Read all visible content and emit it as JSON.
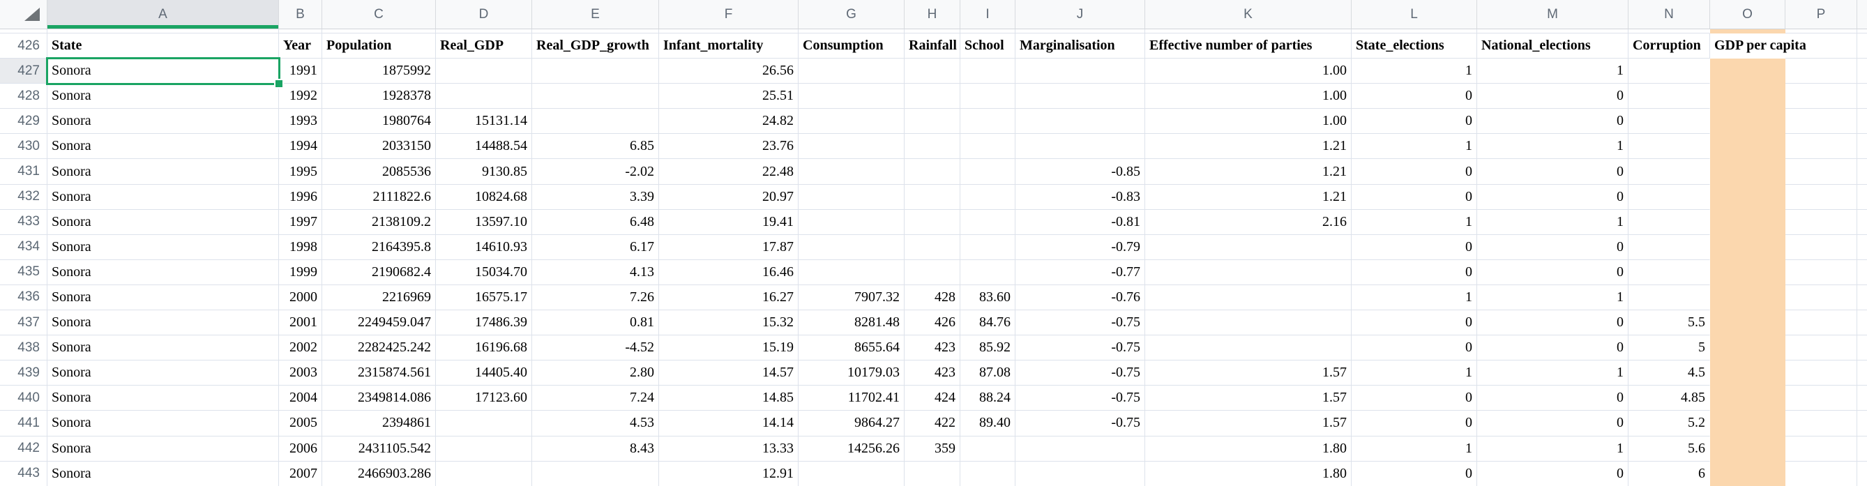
{
  "grid": {
    "column_letters": [
      "A",
      "B",
      "C",
      "D",
      "E",
      "F",
      "G",
      "H",
      "I",
      "J",
      "K",
      "L",
      "M",
      "N",
      "O",
      "P"
    ],
    "selection": {
      "cell_ref": "A427",
      "column": "A",
      "row": "427"
    },
    "header_row": {
      "n": "426",
      "cells": [
        "State",
        "Year",
        "Population",
        "Real_GDP",
        "Real_GDP_growth",
        "Infant_mortality",
        "Consumption",
        "Rainfall",
        "School",
        "Marginalisation",
        "Effective number of parties",
        "State_elections",
        "National_elections",
        "Corruption",
        "GDP per capita",
        ""
      ]
    },
    "data_rows": [
      {
        "n": "427",
        "cells": [
          "Sonora",
          "1991",
          "1875992",
          "",
          "",
          "26.56",
          "",
          "",
          "",
          "",
          "1.00",
          "1",
          "1",
          "",
          "",
          ""
        ]
      },
      {
        "n": "428",
        "cells": [
          "Sonora",
          "1992",
          "1928378",
          "",
          "",
          "25.51",
          "",
          "",
          "",
          "",
          "1.00",
          "0",
          "0",
          "",
          "",
          ""
        ]
      },
      {
        "n": "429",
        "cells": [
          "Sonora",
          "1993",
          "1980764",
          "15131.14",
          "",
          "24.82",
          "",
          "",
          "",
          "",
          "1.00",
          "0",
          "0",
          "",
          "",
          ""
        ]
      },
      {
        "n": "430",
        "cells": [
          "Sonora",
          "1994",
          "2033150",
          "14488.54",
          "6.85",
          "23.76",
          "",
          "",
          "",
          "",
          "1.21",
          "1",
          "1",
          "",
          "",
          ""
        ]
      },
      {
        "n": "431",
        "cells": [
          "Sonora",
          "1995",
          "2085536",
          "9130.85",
          "-2.02",
          "22.48",
          "",
          "",
          "",
          "-0.85",
          "1.21",
          "0",
          "0",
          "",
          "",
          ""
        ]
      },
      {
        "n": "432",
        "cells": [
          "Sonora",
          "1996",
          "2111822.6",
          "10824.68",
          "3.39",
          "20.97",
          "",
          "",
          "",
          "-0.83",
          "1.21",
          "0",
          "0",
          "",
          "",
          ""
        ]
      },
      {
        "n": "433",
        "cells": [
          "Sonora",
          "1997",
          "2138109.2",
          "13597.10",
          "6.48",
          "19.41",
          "",
          "",
          "",
          "-0.81",
          "2.16",
          "1",
          "1",
          "",
          "",
          ""
        ]
      },
      {
        "n": "434",
        "cells": [
          "Sonora",
          "1998",
          "2164395.8",
          "14610.93",
          "6.17",
          "17.87",
          "",
          "",
          "",
          "-0.79",
          "",
          "0",
          "0",
          "",
          "",
          ""
        ]
      },
      {
        "n": "435",
        "cells": [
          "Sonora",
          "1999",
          "2190682.4",
          "15034.70",
          "4.13",
          "16.46",
          "",
          "",
          "",
          "-0.77",
          "",
          "0",
          "0",
          "",
          "",
          ""
        ]
      },
      {
        "n": "436",
        "cells": [
          "Sonora",
          "2000",
          "2216969",
          "16575.17",
          "7.26",
          "16.27",
          "7907.32",
          "428",
          "83.60",
          "-0.76",
          "",
          "1",
          "1",
          "",
          "",
          ""
        ]
      },
      {
        "n": "437",
        "cells": [
          "Sonora",
          "2001",
          "2249459.047",
          "17486.39",
          "0.81",
          "15.32",
          "8281.48",
          "426",
          "84.76",
          "-0.75",
          "",
          "0",
          "0",
          "5.5",
          "",
          ""
        ]
      },
      {
        "n": "438",
        "cells": [
          "Sonora",
          "2002",
          "2282425.242",
          "16196.68",
          "-4.52",
          "15.19",
          "8655.64",
          "423",
          "85.92",
          "-0.75",
          "",
          "0",
          "0",
          "5",
          "",
          ""
        ]
      },
      {
        "n": "439",
        "cells": [
          "Sonora",
          "2003",
          "2315874.561",
          "14405.40",
          "2.80",
          "14.57",
          "10179.03",
          "423",
          "87.08",
          "-0.75",
          "1.57",
          "1",
          "1",
          "4.5",
          "",
          ""
        ]
      },
      {
        "n": "440",
        "cells": [
          "Sonora",
          "2004",
          "2349814.086",
          "17123.60",
          "7.24",
          "14.85",
          "11702.41",
          "424",
          "88.24",
          "-0.75",
          "1.57",
          "0",
          "0",
          "4.85",
          "",
          ""
        ]
      },
      {
        "n": "441",
        "cells": [
          "Sonora",
          "2005",
          "2394861",
          "",
          "4.53",
          "14.14",
          "9864.27",
          "422",
          "89.40",
          "-0.75",
          "1.57",
          "0",
          "0",
          "5.2",
          "",
          ""
        ]
      },
      {
        "n": "442",
        "cells": [
          "Sonora",
          "2006",
          "2431105.542",
          "",
          "8.43",
          "13.33",
          "14256.26",
          "359",
          "",
          "",
          "1.80",
          "1",
          "1",
          "5.6",
          "",
          ""
        ]
      },
      {
        "n": "443",
        "cells": [
          "Sonora",
          "2007",
          "2466903.286",
          "",
          "",
          "12.91",
          "",
          "",
          "",
          "",
          "1.80",
          "0",
          "0",
          "6",
          "",
          ""
        ]
      }
    ]
  },
  "styles": {
    "accent_green": "#1aa463",
    "peach_fill": "#fbd7ae",
    "grid_line": "#dde2eb",
    "strip_bg": "#f8f9fa",
    "strip_text": "#5f6975",
    "row_number_text": "#5c6874",
    "selected_header_bg": "#e2e4e8",
    "selected_row_header_bg": "#e9ebee",
    "cell_text": "#000000"
  }
}
